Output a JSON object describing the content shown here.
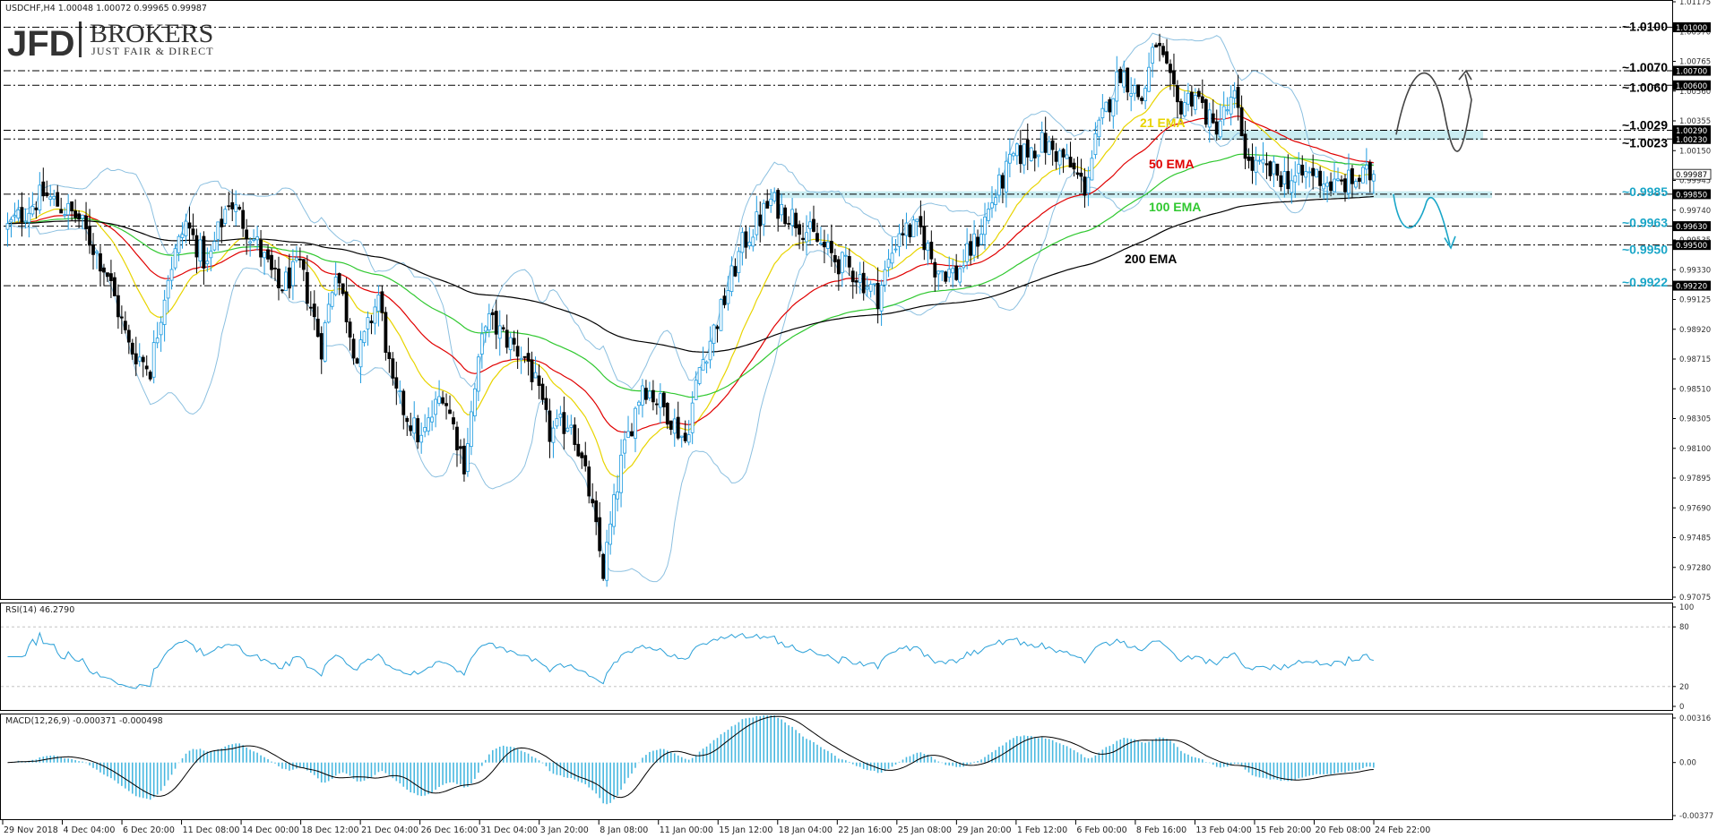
{
  "header": {
    "main": "USDCHF,H4  1.00048 1.00072 0.99965 0.99987",
    "rsi": "RSI(14) 46.2790",
    "macd": "MACD(12,26,9) -0.000371 -0.000498"
  },
  "logo": {
    "brand": "JFD",
    "name": "BROKERS",
    "tagline": "JUST FAIR & DIRECT"
  },
  "colors": {
    "bull": "#1e9be0",
    "bear": "#000000",
    "bollinger": "#8cc0e0",
    "ema21": "#e8d400",
    "ema50": "#e00000",
    "ema100": "#30c830",
    "ema200": "#000000",
    "support": "#1aa6c8",
    "resistance": "#000000",
    "rsi": "#2aa0d8",
    "macd_hist": "#48b8e0",
    "zone": "#9fdfe8",
    "arrow_up": "#444444",
    "arrow_down": "#1aa6c8"
  },
  "chart_data": [
    {
      "type": "candlestick",
      "symbol": "USDCHF",
      "timeframe": "H4",
      "ylim": [
        0.97075,
        1.01175
      ],
      "y_ticks": [
        "1.01175",
        "1.00970",
        "1.00765",
        "1.00560",
        "1.00355",
        "1.00150",
        "0.99945",
        "0.99740",
        "0.99535",
        "0.99330",
        "0.99125",
        "0.98920",
        "0.98715",
        "0.98510",
        "0.98305",
        "0.98100",
        "0.97895",
        "0.97690",
        "0.97485",
        "0.97280",
        "0.97075"
      ],
      "x_ticks": [
        "29 Nov 2018",
        "4 Dec 04:00",
        "6 Dec 20:00",
        "11 Dec 08:00",
        "14 Dec 00:00",
        "18 Dec 12:00",
        "21 Dec 04:00",
        "26 Dec 16:00",
        "31 Dec 04:00",
        "3 Jan 20:00",
        "8 Jan 08:00",
        "11 Jan 00:00",
        "15 Jan 12:00",
        "18 Jan 04:00",
        "22 Jan 16:00",
        "25 Jan 08:00",
        "29 Jan 20:00",
        "1 Feb 12:00",
        "6 Feb 00:00",
        "8 Feb 16:00",
        "13 Feb 04:00",
        "15 Feb 20:00",
        "20 Feb 08:00",
        "24 Feb 22:00"
      ],
      "close_path": [
        [
          0,
          0.9962
        ],
        [
          10,
          0.9985
        ],
        [
          20,
          0.9968
        ],
        [
          28,
          0.993
        ],
        [
          34,
          0.988
        ],
        [
          40,
          0.9865
        ],
        [
          45,
          0.993
        ],
        [
          50,
          0.9965
        ],
        [
          56,
          0.9935
        ],
        [
          62,
          0.9982
        ],
        [
          70,
          0.995
        ],
        [
          76,
          0.992
        ],
        [
          82,
          0.9935
        ],
        [
          88,
          0.988
        ],
        [
          92,
          0.9935
        ],
        [
          98,
          0.987
        ],
        [
          104,
          0.9915
        ],
        [
          108,
          0.985
        ],
        [
          116,
          0.9815
        ],
        [
          122,
          0.985
        ],
        [
          128,
          0.98
        ],
        [
          134,
          0.99
        ],
        [
          140,
          0.9885
        ],
        [
          146,
          0.987
        ],
        [
          152,
          0.982
        ],
        [
          158,
          0.983
        ],
        [
          163,
          0.978
        ],
        [
          167,
          0.9725
        ],
        [
          172,
          0.98
        ],
        [
          178,
          0.9855
        ],
        [
          185,
          0.9835
        ],
        [
          190,
          0.9815
        ],
        [
          194,
          0.9865
        ],
        [
          200,
          0.9905
        ],
        [
          206,
          0.995
        ],
        [
          214,
          0.998
        ],
        [
          220,
          0.997
        ],
        [
          226,
          0.9955
        ],
        [
          232,
          0.994
        ],
        [
          238,
          0.993
        ],
        [
          244,
          0.9915
        ],
        [
          250,
          0.996
        ],
        [
          256,
          0.996
        ],
        [
          260,
          0.9935
        ],
        [
          266,
          0.993
        ],
        [
          272,
          0.9955
        ],
        [
          276,
          0.998
        ],
        [
          282,
          1.001
        ],
        [
          290,
          1.002
        ],
        [
          296,
          1.001
        ],
        [
          302,
          0.999
        ],
        [
          306,
          1.003
        ],
        [
          312,
          1.007
        ],
        [
          318,
          1.005
        ],
        [
          322,
          1.009
        ],
        [
          328,
          1.0045
        ],
        [
          333,
          1.0055
        ],
        [
          338,
          1.003
        ],
        [
          344,
          1.005
        ],
        [
          348,
          1.0005
        ],
        [
          354,
          1.0
        ],
        [
          360,
          0.9995
        ],
        [
          366,
          1.0
        ],
        [
          372,
          0.999
        ],
        [
          378,
          0.9995
        ],
        [
          383,
          0.9999
        ]
      ],
      "bars": 384,
      "last_close": 0.99987
    },
    {
      "type": "line",
      "title": "RSI(14) 46.2790",
      "ylim": [
        0,
        100
      ],
      "y_ticks": [
        "100",
        "80",
        "20",
        "0"
      ],
      "levels": [
        80,
        20
      ],
      "last_value": 46.279
    },
    {
      "type": "bar",
      "title": "MACD(12,26,9) -0.000371 -0.000498",
      "ylim": [
        -0.00377,
        0.00316
      ],
      "y_ticks": [
        "0.00316",
        "0.00",
        "-0.00377"
      ],
      "macd_main": -0.000371,
      "signal": -0.000498
    }
  ],
  "annotations": {
    "resistance": [
      {
        "label": "~1.0100",
        "price": 1.01,
        "box": "1.01000"
      },
      {
        "label": "~1.0070",
        "price": 1.007,
        "box": "1.00700"
      },
      {
        "label": "~1.0060",
        "price": 1.006,
        "box": "1.00600"
      },
      {
        "label": "~1.0029",
        "price": 1.0029,
        "box": "1.00290"
      },
      {
        "label": "~1.0023",
        "price": 1.0023,
        "box": "1.00230"
      }
    ],
    "support": [
      {
        "label": "~0.9985",
        "price": 0.9985,
        "box": "0.99850"
      },
      {
        "label": "~0.9963",
        "price": 0.9963,
        "box": "0.99630"
      },
      {
        "label": "~0.9950",
        "price": 0.995,
        "box": "0.99500"
      },
      {
        "label": "~0.9922",
        "price": 0.9922,
        "box": "0.99220"
      }
    ],
    "current_price_box": "0.99987",
    "ema_labels": [
      "21 EMA",
      "50 EMA",
      "100 EMA",
      "200 EMA"
    ]
  }
}
